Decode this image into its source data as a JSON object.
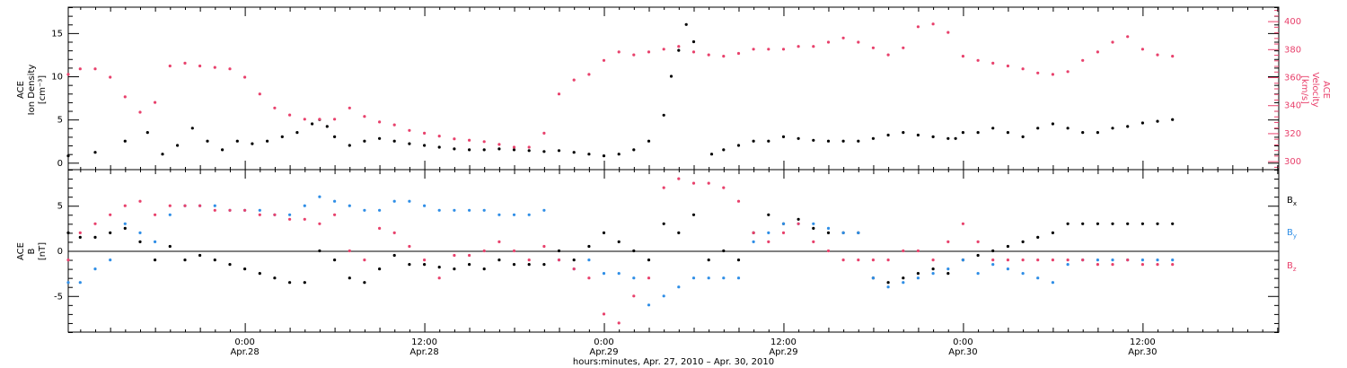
{
  "colors": {
    "black": "#000000",
    "pink": "#e8416c",
    "blue": "#2f8ee6"
  },
  "x_axis": {
    "title": "hours:minutes, Apr. 27, 2010 – Apr. 30, 2010",
    "ticks": [
      {
        "t": 24,
        "time": "0:00",
        "date": "Apr.28"
      },
      {
        "t": 36,
        "time": "12:00",
        "date": "Apr.28"
      },
      {
        "t": 48,
        "time": "0:00",
        "date": "Apr.29"
      },
      {
        "t": 60,
        "time": "12:00",
        "date": "Apr.29"
      },
      {
        "t": 72,
        "time": "0:00",
        "date": "Apr.30"
      },
      {
        "t": 84,
        "time": "12:00",
        "date": "Apr.30"
      }
    ]
  },
  "chart_data": [
    {
      "type": "scatter",
      "panel": "top",
      "xlim": [
        12.2,
        93.1
      ],
      "left_axis": {
        "label_lines": [
          "ACE",
          "Ion Density",
          "[cm⁻³]"
        ],
        "ylim": [
          -0.8,
          18
        ],
        "ticks": [
          0,
          5,
          10,
          15
        ]
      },
      "right_axis": {
        "label_lines": [
          "ACE",
          "Velocity",
          "[km/s]"
        ],
        "ylim": [
          294,
          410
        ],
        "ticks": [
          300,
          320,
          340,
          360,
          380,
          400
        ]
      },
      "series": [
        {
          "key": "density",
          "color": "#000000",
          "axis": "left",
          "x": [
            12.2,
            14,
            16,
            17.5,
            18.5,
            19.5,
            20.5,
            21.5,
            22.5,
            23.5,
            24.5,
            25.5,
            26.5,
            27.5,
            28.5,
            29,
            29.5,
            30,
            31,
            32,
            33,
            34,
            35,
            36,
            37,
            38,
            39,
            40,
            41,
            42,
            43,
            44,
            45,
            46,
            47,
            48,
            49,
            50,
            51,
            52,
            52.5,
            53,
            53.5,
            54,
            54.8,
            55.2,
            56,
            57,
            58,
            59,
            60,
            61,
            62,
            63,
            64,
            65,
            66,
            67,
            68,
            69,
            70,
            71,
            71.5,
            72,
            73,
            74,
            75,
            76,
            77,
            78,
            79,
            80,
            81,
            82,
            83,
            84,
            85,
            86
          ],
          "y": [
            0.8,
            1.2,
            2.5,
            3.5,
            1,
            2,
            4,
            2.5,
            1.5,
            2.5,
            2.2,
            2.5,
            3,
            3.5,
            4.5,
            5,
            4.2,
            3,
            2,
            2.5,
            2.8,
            2.5,
            2.2,
            2,
            1.8,
            1.6,
            1.5,
            1.5,
            1.6,
            1.5,
            1.4,
            1.3,
            1.4,
            1.2,
            1,
            0.8,
            1,
            1.5,
            2.5,
            5.5,
            10,
            13,
            16,
            14,
            null,
            1,
            1.5,
            2,
            2.5,
            2.5,
            3,
            2.8,
            2.6,
            2.5,
            2.5,
            2.5,
            2.8,
            3.2,
            3.5,
            3.2,
            3,
            2.8,
            2.8,
            3.5,
            3.5,
            4,
            3.5,
            3,
            4,
            4.5,
            4,
            3.5,
            3.5,
            4,
            4.2,
            4.6,
            4.8,
            5
          ]
        },
        {
          "key": "velocity",
          "color": "#e8416c",
          "axis": "right",
          "x": [
            12.2,
            13,
            14,
            15,
            16,
            17,
            18,
            19,
            20,
            21,
            22,
            23,
            24,
            25,
            26,
            27,
            28,
            29,
            30,
            31,
            32,
            33,
            34,
            35,
            36,
            37,
            38,
            39,
            40,
            41,
            42,
            43,
            44,
            45,
            46,
            47,
            48,
            49,
            50,
            51,
            52,
            53,
            54,
            55,
            56,
            57,
            58,
            59,
            60,
            61,
            62,
            63,
            64,
            65,
            66,
            67,
            68,
            69,
            70,
            71,
            72,
            73,
            74,
            75,
            76,
            77,
            78,
            79,
            80,
            81,
            82,
            83,
            84,
            85,
            86
          ],
          "y": [
            362,
            366,
            366,
            360,
            346,
            335,
            342,
            368,
            370,
            368,
            367,
            366,
            360,
            348,
            338,
            333,
            330,
            330,
            330,
            338,
            332,
            328,
            326,
            322,
            320,
            318,
            316,
            315,
            314,
            312,
            310,
            310,
            320,
            348,
            358,
            362,
            372,
            378,
            376,
            378,
            380,
            382,
            378,
            376,
            375,
            377,
            380,
            380,
            380,
            382,
            382,
            385,
            388,
            385,
            381,
            376,
            381,
            396,
            398,
            392,
            375,
            372,
            370,
            368,
            366,
            363,
            362,
            364,
            372,
            378,
            385,
            389,
            380,
            376,
            375
          ]
        }
      ]
    },
    {
      "type": "scatter",
      "panel": "bottom",
      "xlim": [
        12.2,
        93.1
      ],
      "left_axis": {
        "label_lines": [
          "ACE",
          "B",
          "[nT]"
        ],
        "ylim": [
          -9,
          9
        ],
        "ticks": [
          -5,
          0,
          5
        ]
      },
      "zero_line": true,
      "legend": {
        "placement": "right",
        "entries": [
          {
            "name": "B",
            "sub": "x",
            "color": "#000000"
          },
          {
            "name": "B",
            "sub": "y",
            "color": "#2f8ee6"
          },
          {
            "name": "B",
            "sub": "z",
            "color": "#e8416c"
          }
        ]
      },
      "series": [
        {
          "key": "Bx",
          "color": "#000000",
          "x": [
            12.2,
            13,
            14,
            15,
            16,
            17,
            18,
            19,
            20,
            21,
            22,
            23,
            24,
            25,
            26,
            27,
            28,
            29,
            30,
            31,
            32,
            33,
            34,
            35,
            36,
            37,
            38,
            39,
            40,
            41,
            42,
            43,
            44,
            45,
            46,
            47,
            48,
            49,
            50,
            51,
            52,
            53,
            54,
            55,
            56,
            57,
            58,
            59,
            60,
            61,
            62,
            63,
            64,
            65,
            66,
            67,
            68,
            69,
            70,
            71,
            72,
            73,
            74,
            75,
            76,
            77,
            78,
            79,
            80,
            81,
            82,
            83,
            84,
            85,
            86
          ],
          "y": [
            2,
            1.5,
            1.5,
            2,
            2.5,
            1,
            -1,
            0.5,
            -1,
            -0.5,
            -1,
            -1.5,
            -2,
            -2.5,
            -3,
            -3.5,
            -3.5,
            0,
            -1,
            -3,
            -3.5,
            -2,
            -0.5,
            -1.5,
            -1.5,
            -1.8,
            -2,
            -1.5,
            -2,
            -1,
            -1.5,
            -1.5,
            -1.5,
            0,
            -1,
            0.5,
            2,
            1,
            0,
            -1,
            3,
            2,
            4,
            -1,
            0,
            -1,
            2,
            4,
            3,
            3.5,
            2.5,
            2,
            2,
            2,
            -3,
            -3.5,
            -3,
            -2.5,
            -2,
            -2.5,
            -1,
            -0.5,
            0,
            0.5,
            1,
            1.5,
            2,
            3,
            3,
            3,
            3,
            3,
            3,
            3,
            3
          ]
        },
        {
          "key": "By",
          "color": "#2f8ee6",
          "x": [
            12.2,
            13,
            14,
            15,
            16,
            17,
            18,
            19,
            20,
            21,
            22,
            23,
            24,
            25,
            26,
            27,
            28,
            29,
            30,
            31,
            32,
            33,
            34,
            35,
            36,
            37,
            38,
            39,
            40,
            41,
            42,
            43,
            44,
            45,
            46,
            47,
            48,
            49,
            50,
            51,
            52,
            53,
            54,
            55,
            56,
            57,
            58,
            59,
            60,
            61,
            62,
            63,
            64,
            65,
            66,
            67,
            68,
            69,
            70,
            71,
            72,
            73,
            74,
            75,
            76,
            77,
            78,
            79,
            80,
            81,
            82,
            83,
            84,
            85,
            86
          ],
          "y": [
            -3.5,
            -3.5,
            -2,
            -1,
            3,
            2,
            1,
            4,
            5,
            5,
            5,
            4.5,
            4.5,
            4.5,
            4,
            4,
            5,
            6,
            5.5,
            5,
            4.5,
            4.5,
            5.5,
            5.5,
            5,
            4.5,
            4.5,
            4.5,
            4.5,
            4,
            4,
            4,
            4.5,
            -1,
            -2,
            -1,
            -2.5,
            -2.5,
            -3,
            -6,
            -5,
            -4,
            -3,
            -3,
            -3,
            -3,
            1,
            2,
            3,
            3,
            3,
            2.5,
            2,
            2,
            -3,
            -4,
            -3.5,
            -3,
            -2.5,
            -2,
            -1,
            -2.5,
            -1.5,
            -2,
            -2.5,
            -3,
            -3.5,
            -1.5,
            -1,
            -1,
            -1,
            -1,
            -1,
            -1,
            -1
          ]
        },
        {
          "key": "Bz",
          "color": "#e8416c",
          "x": [
            12.2,
            13,
            14,
            15,
            16,
            17,
            18,
            19,
            20,
            21,
            22,
            23,
            24,
            25,
            26,
            27,
            28,
            29,
            30,
            31,
            32,
            33,
            34,
            35,
            36,
            37,
            38,
            39,
            40,
            41,
            42,
            43,
            44,
            45,
            46,
            47,
            48,
            49,
            50,
            51,
            52,
            53,
            54,
            55,
            56,
            57,
            58,
            59,
            60,
            61,
            62,
            63,
            64,
            65,
            66,
            67,
            68,
            69,
            70,
            71,
            72,
            73,
            74,
            75,
            76,
            77,
            78,
            79,
            80,
            81,
            82,
            83,
            84,
            85,
            86
          ],
          "y": [
            -1,
            2,
            3,
            4,
            5,
            5.5,
            4,
            5,
            5,
            5,
            4.5,
            4.5,
            4.5,
            4,
            4,
            3.5,
            3.5,
            3,
            4,
            0,
            -1,
            2.5,
            2,
            0.5,
            -1,
            -3,
            -0.5,
            -0.5,
            0,
            1,
            0,
            -1,
            0.5,
            -1,
            -2,
            -3,
            -7,
            -8,
            -5,
            -3,
            7,
            8,
            7.5,
            7.5,
            7,
            5.5,
            2,
            1,
            2,
            3,
            1,
            0,
            -1,
            -1,
            -1,
            -1,
            0,
            0,
            -1,
            1,
            3,
            1,
            -1,
            -1,
            -1,
            -1,
            -1,
            -1,
            -1,
            -1.5,
            -1.5,
            -1,
            -1.5,
            -1.5,
            -1.5
          ]
        }
      ]
    }
  ]
}
